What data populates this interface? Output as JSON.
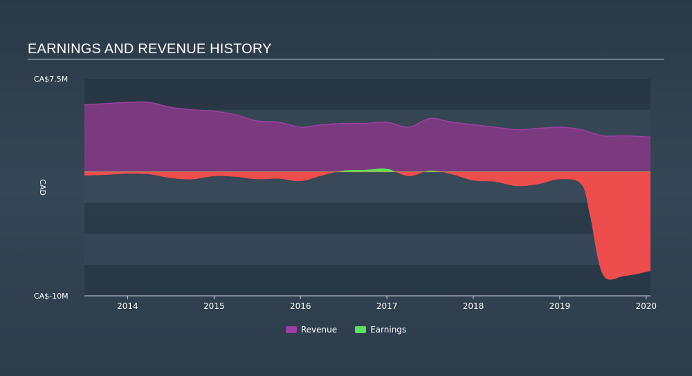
{
  "chart_data": {
    "type": "area",
    "title": "EARNINGS AND REVENUE HISTORY",
    "ylabel": "CAD",
    "ylim": [
      -10,
      7.5
    ],
    "ytick_labels": [
      "CA$7.5M",
      "CA$-10M"
    ],
    "xlim": [
      2013.5,
      2020.05
    ],
    "x_ticks": [
      2014,
      2015,
      2016,
      2017,
      2018,
      2019,
      2020
    ],
    "series": [
      {
        "name": "Revenue",
        "color": "#7b3a7f",
        "legend_color": "#9b3fa0",
        "x": [
          2013.5,
          2013.75,
          2014.0,
          2014.25,
          2014.5,
          2014.75,
          2015.0,
          2015.25,
          2015.5,
          2015.75,
          2016.0,
          2016.25,
          2016.5,
          2016.75,
          2017.0,
          2017.25,
          2017.5,
          2017.75,
          2018.0,
          2018.25,
          2018.5,
          2018.75,
          2019.0,
          2019.25,
          2019.5,
          2019.75,
          2020.05
        ],
        "values": [
          5.4,
          5.5,
          5.6,
          5.6,
          5.2,
          5.0,
          4.9,
          4.6,
          4.1,
          4.0,
          3.6,
          3.8,
          3.9,
          3.9,
          4.0,
          3.6,
          4.3,
          4.0,
          3.8,
          3.6,
          3.4,
          3.5,
          3.6,
          3.4,
          2.9,
          2.9,
          2.8
        ]
      },
      {
        "name": "Earnings",
        "color": "#ee4d4d",
        "legend_color": "#5de25d",
        "positive_color": "#5de25d",
        "x": [
          2013.5,
          2013.75,
          2014.0,
          2014.25,
          2014.5,
          2014.75,
          2015.0,
          2015.25,
          2015.5,
          2015.75,
          2016.0,
          2016.25,
          2016.5,
          2016.75,
          2017.0,
          2017.25,
          2017.5,
          2017.75,
          2018.0,
          2018.25,
          2018.5,
          2018.75,
          2019.0,
          2019.25,
          2019.35,
          2019.5,
          2019.75,
          2020.05
        ],
        "values": [
          -0.3,
          -0.25,
          -0.15,
          -0.2,
          -0.5,
          -0.6,
          -0.35,
          -0.4,
          -0.6,
          -0.55,
          -0.75,
          -0.3,
          0.1,
          0.15,
          0.25,
          -0.35,
          0.1,
          -0.2,
          -0.7,
          -0.8,
          -1.15,
          -1.0,
          -0.6,
          -1.0,
          -3.5,
          -8.3,
          -8.4,
          -8.0
        ]
      }
    ]
  }
}
